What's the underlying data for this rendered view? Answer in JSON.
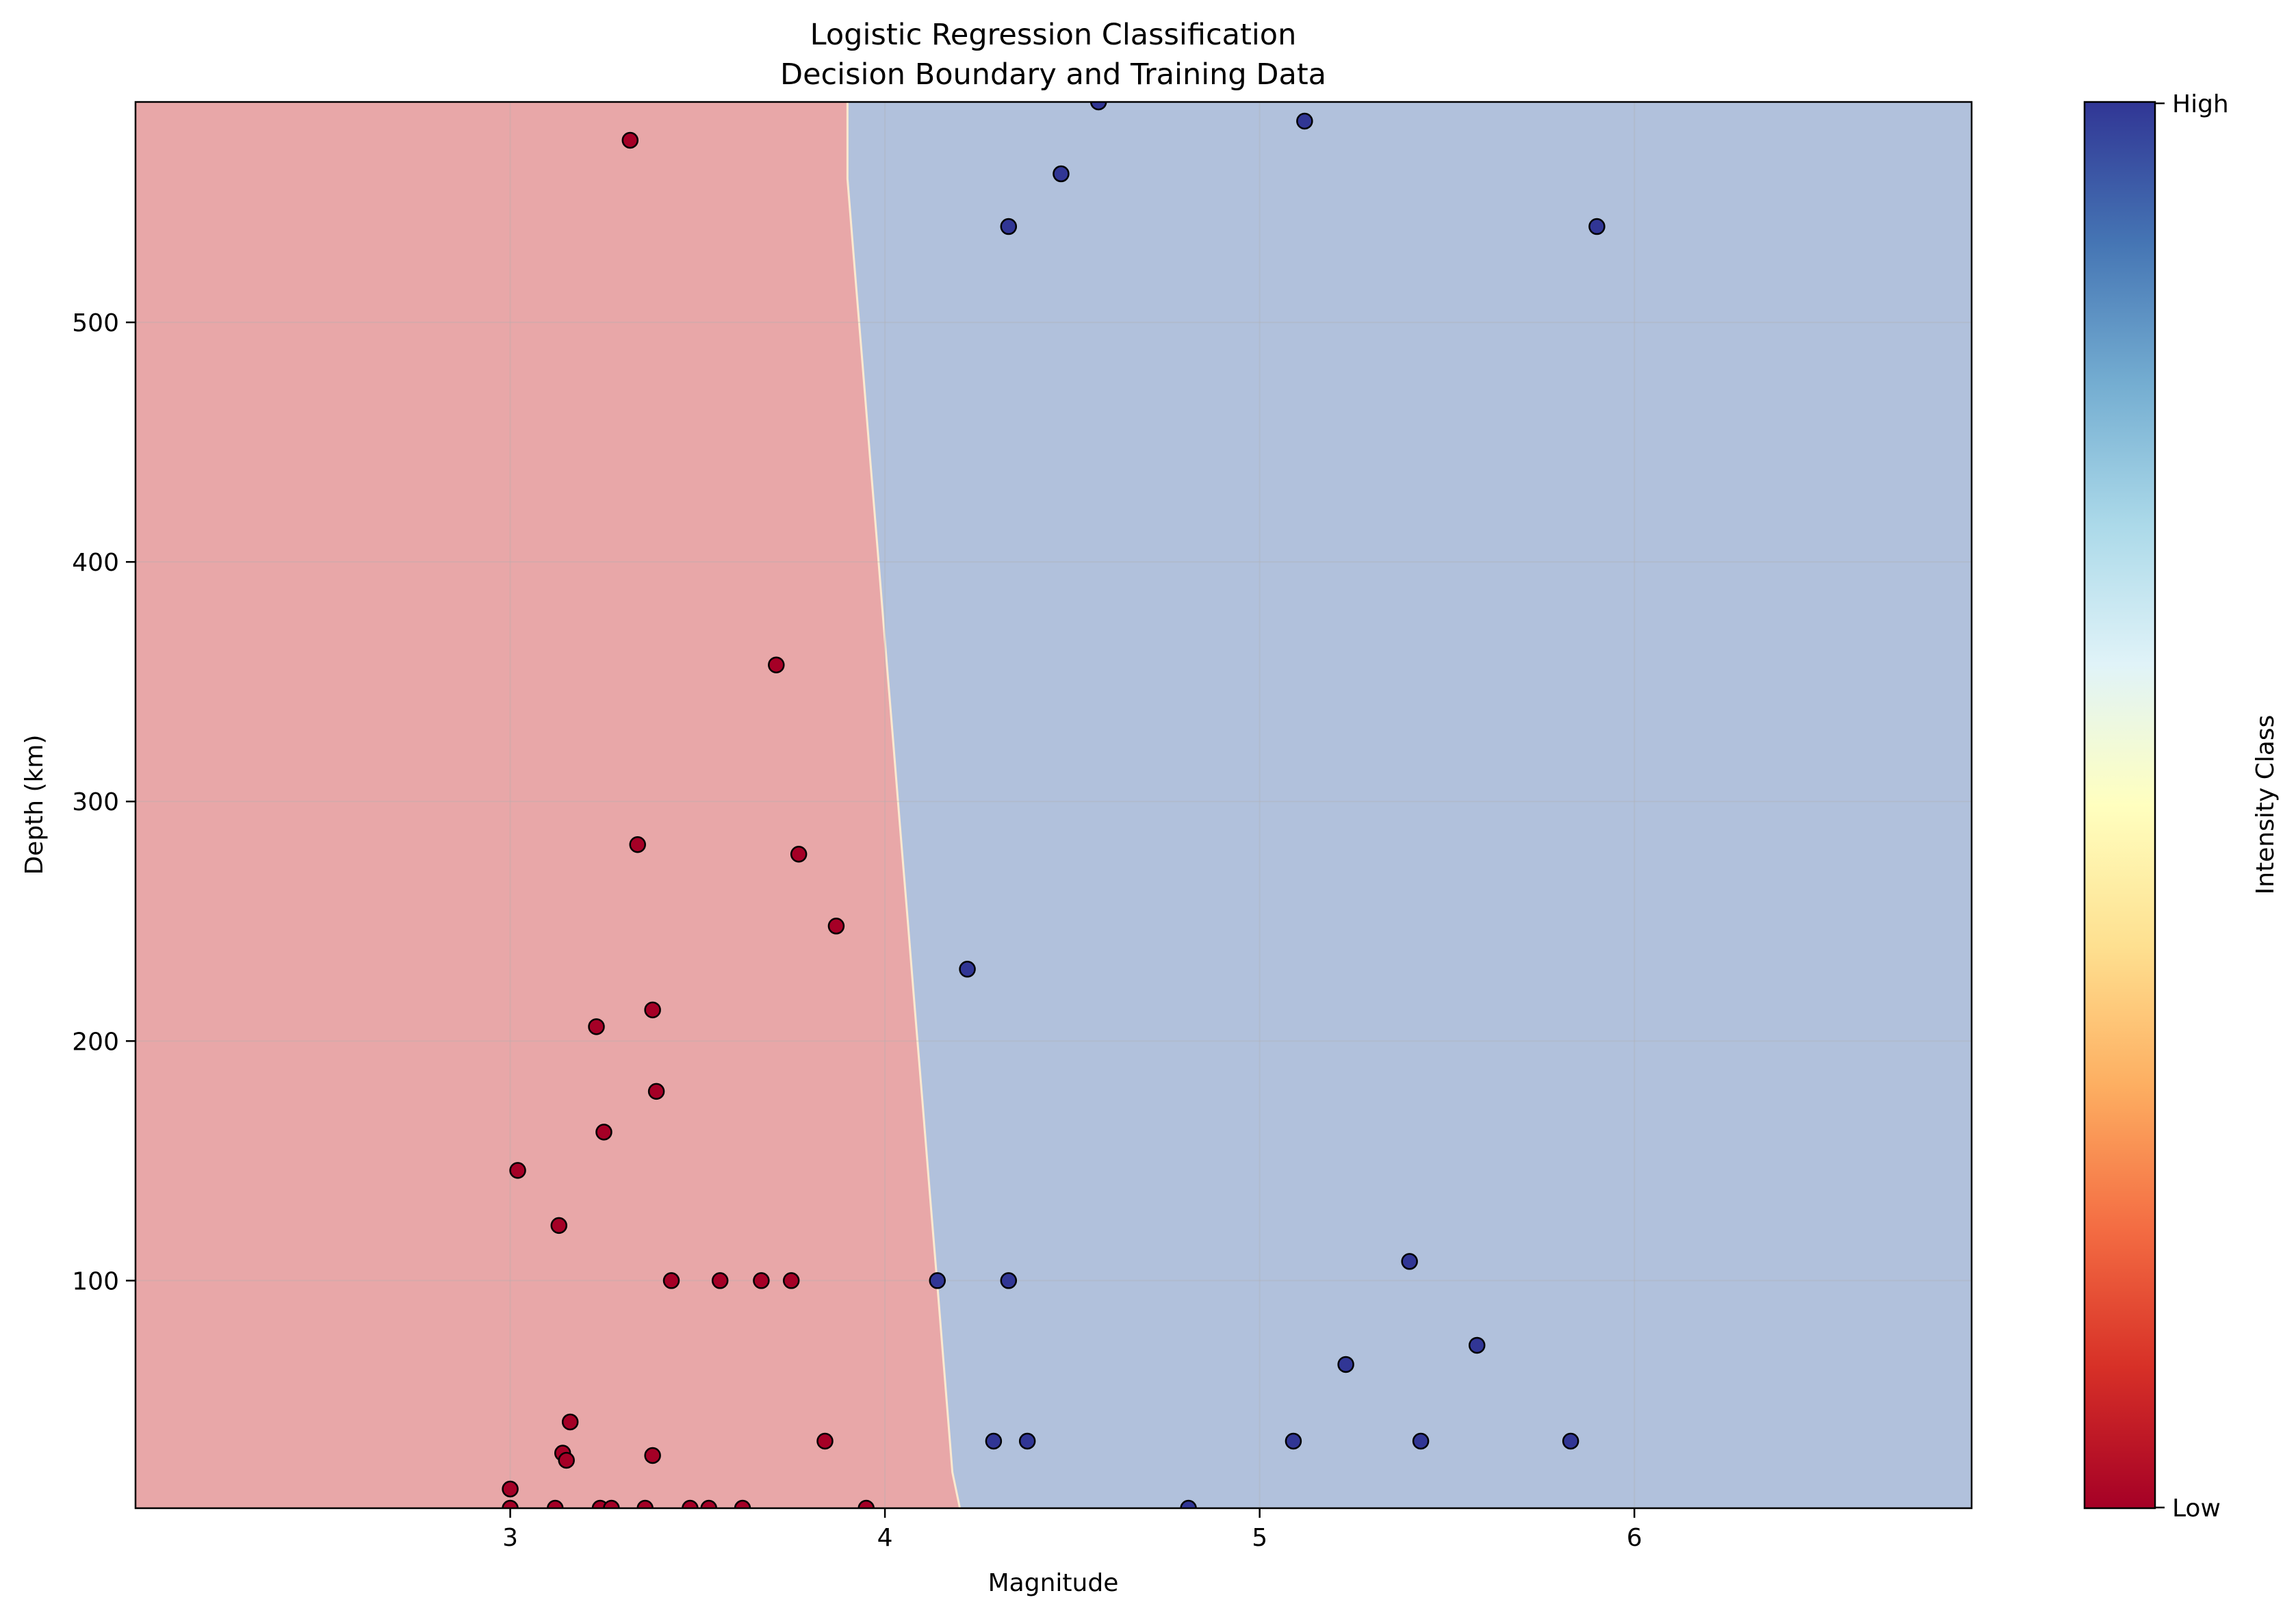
{
  "chart_data": {
    "type": "scatter",
    "title": "Logistic Regression Classification",
    "subtitle": "Decision Boundary and Training Data",
    "xlabel": "Magnitude",
    "ylabel": "Depth (km)",
    "xlim": [
      2.0,
      6.9
    ],
    "ylim": [
      5,
      592
    ],
    "xticks": [
      3,
      4,
      5,
      6
    ],
    "yticks": [
      100,
      200,
      300,
      400,
      500
    ],
    "grid": true,
    "colorbar": {
      "label": "Intensity Class",
      "tick_low": "Low",
      "tick_high": "High",
      "colormap": "RdYlBu",
      "stops": [
        "#a50026",
        "#d73027",
        "#f46d43",
        "#fdae61",
        "#fee090",
        "#ffffbf",
        "#e0f3f8",
        "#abd9e9",
        "#74add1",
        "#4575b4",
        "#313695"
      ]
    },
    "region_colors": {
      "low": "#e8a7a8",
      "high": "#b1c1dc"
    },
    "boundary": [
      {
        "y": 5,
        "x": 4.2
      },
      {
        "y": 20,
        "x": 4.18
      },
      {
        "y": 59,
        "x": 4.16
      },
      {
        "y": 98,
        "x": 4.14
      },
      {
        "y": 136,
        "x": 4.12
      },
      {
        "y": 175,
        "x": 4.1
      },
      {
        "y": 213,
        "x": 4.08
      },
      {
        "y": 252,
        "x": 4.06
      },
      {
        "y": 290,
        "x": 4.04
      },
      {
        "y": 329,
        "x": 4.02
      },
      {
        "y": 367,
        "x": 4.0
      },
      {
        "y": 406,
        "x": 3.98
      },
      {
        "y": 444,
        "x": 3.96
      },
      {
        "y": 483,
        "x": 3.94
      },
      {
        "y": 521,
        "x": 3.92
      },
      {
        "y": 560,
        "x": 3.9
      },
      {
        "y": 592,
        "x": 3.9
      }
    ],
    "series": [
      {
        "class": "low",
        "color": "#a50026",
        "points": [
          [
            3.32,
            576
          ],
          [
            3.71,
            357
          ],
          [
            3.34,
            282
          ],
          [
            3.77,
            278
          ],
          [
            3.87,
            248
          ],
          [
            3.38,
            213
          ],
          [
            3.23,
            206
          ],
          [
            3.39,
            179
          ],
          [
            3.25,
            162
          ],
          [
            3.02,
            146
          ],
          [
            3.13,
            123
          ],
          [
            3.43,
            100
          ],
          [
            3.56,
            100
          ],
          [
            3.67,
            100
          ],
          [
            3.75,
            100
          ],
          [
            3.84,
            33
          ],
          [
            3.16,
            41
          ],
          [
            3.14,
            28
          ],
          [
            3.15,
            25
          ],
          [
            3.38,
            27
          ],
          [
            3.0,
            13
          ],
          [
            3.0,
            5
          ],
          [
            3.12,
            5
          ],
          [
            3.24,
            5
          ],
          [
            3.27,
            5
          ],
          [
            3.36,
            5
          ],
          [
            3.48,
            5
          ],
          [
            3.53,
            5
          ],
          [
            3.62,
            5
          ],
          [
            3.95,
            5
          ]
        ]
      },
      {
        "class": "high",
        "color": "#313695",
        "points": [
          [
            4.57,
            592
          ],
          [
            5.12,
            584
          ],
          [
            4.47,
            562
          ],
          [
            4.33,
            540
          ],
          [
            5.9,
            540
          ],
          [
            4.22,
            230
          ],
          [
            4.14,
            100
          ],
          [
            4.33,
            100
          ],
          [
            5.4,
            108
          ],
          [
            5.58,
            73
          ],
          [
            5.23,
            65
          ],
          [
            4.29,
            33
          ],
          [
            4.38,
            33
          ],
          [
            5.09,
            33
          ],
          [
            5.43,
            33
          ],
          [
            5.83,
            33
          ],
          [
            4.81,
            5
          ]
        ]
      }
    ]
  }
}
